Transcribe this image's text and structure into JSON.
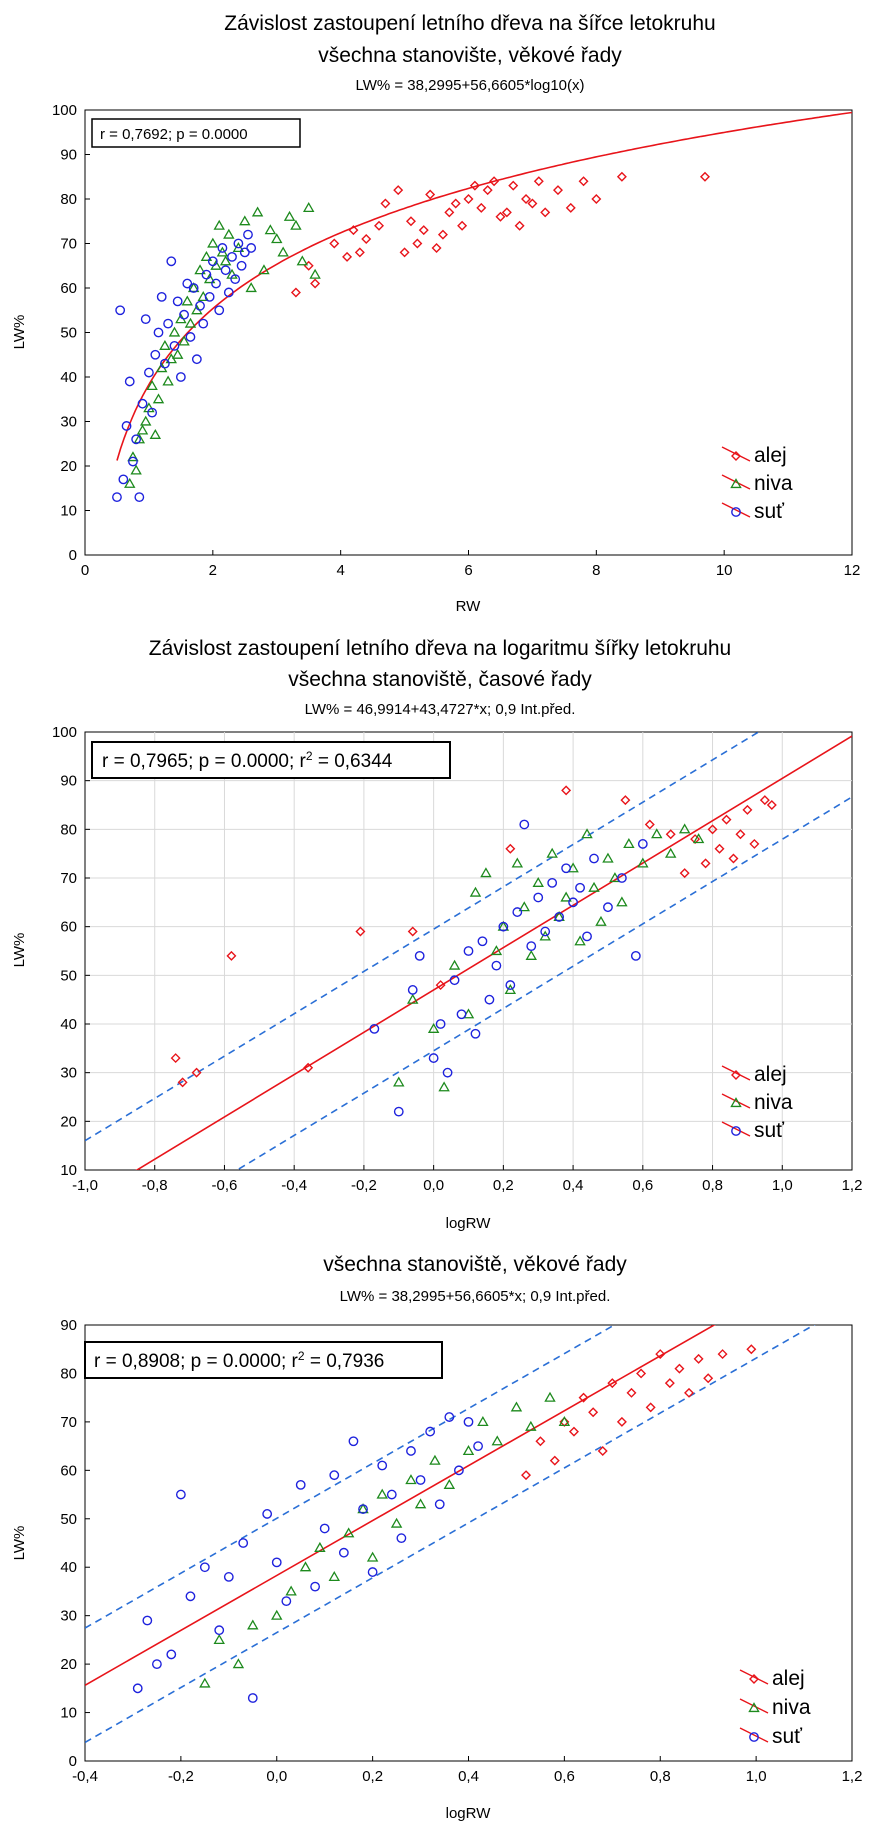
{
  "chart_data": [
    {
      "type": "scatter",
      "title": "Závislost zastoupení letního dřeva na šířce letokruhu",
      "subtitle": "všechna stanovište, věkové řady",
      "equation": "LW% = 38,2995+56,6605*log10(x)",
      "stats": "r = 0,7692; p = 0.0000",
      "xlabel": "RW",
      "ylabel": "LW%",
      "xlim": [
        0,
        12
      ],
      "ylim": [
        0,
        100
      ],
      "xticks": [
        "0",
        "2",
        "4",
        "6",
        "8",
        "10",
        "12"
      ],
      "yticks": [
        "0",
        "10",
        "20",
        "30",
        "40",
        "50",
        "60",
        "70",
        "80",
        "90",
        "100"
      ],
      "grid": false,
      "legend_position": "bottom-right",
      "fit": {
        "form": "log10",
        "intercept": 38.2995,
        "slope": 56.6605
      },
      "series": [
        {
          "name": "alej",
          "color": "#e8141a",
          "marker": "diamond",
          "x": [
            3.3,
            3.5,
            3.6,
            3.9,
            4.1,
            4.2,
            4.3,
            4.4,
            4.6,
            4.7,
            4.9,
            5.0,
            5.1,
            5.2,
            5.3,
            5.4,
            5.5,
            5.6,
            5.7,
            5.8,
            5.9,
            6.0,
            6.1,
            6.2,
            6.3,
            6.4,
            6.5,
            6.6,
            6.7,
            6.8,
            6.9,
            7.0,
            7.1,
            7.2,
            7.4,
            7.6,
            7.8,
            8.0,
            8.4,
            9.7
          ],
          "y": [
            59,
            65,
            61,
            70,
            67,
            73,
            68,
            71,
            74,
            79,
            82,
            68,
            75,
            70,
            73,
            81,
            69,
            72,
            77,
            79,
            74,
            80,
            83,
            78,
            82,
            84,
            76,
            77,
            83,
            74,
            80,
            79,
            84,
            77,
            82,
            78,
            84,
            80,
            85,
            85
          ]
        },
        {
          "name": "niva",
          "color": "#1d8a1d",
          "marker": "triangle",
          "x": [
            0.7,
            0.75,
            0.8,
            0.85,
            0.9,
            0.95,
            1.0,
            1.05,
            1.1,
            1.15,
            1.2,
            1.25,
            1.3,
            1.35,
            1.4,
            1.45,
            1.5,
            1.55,
            1.6,
            1.65,
            1.7,
            1.75,
            1.8,
            1.85,
            1.9,
            1.95,
            2.0,
            2.05,
            2.1,
            2.15,
            2.2,
            2.25,
            2.3,
            2.4,
            2.5,
            2.6,
            2.7,
            2.8,
            2.9,
            3.0,
            3.1,
            3.2,
            3.3,
            3.4,
            3.5,
            3.6
          ],
          "y": [
            16,
            22,
            19,
            26,
            28,
            30,
            33,
            38,
            27,
            35,
            42,
            47,
            39,
            44,
            50,
            45,
            53,
            48,
            57,
            52,
            60,
            55,
            64,
            58,
            67,
            62,
            70,
            65,
            74,
            68,
            66,
            72,
            63,
            69,
            75,
            60,
            77,
            64,
            73,
            71,
            68,
            76,
            74,
            66,
            78,
            63
          ]
        },
        {
          "name": "suť",
          "color": "#1e22dd",
          "marker": "circle",
          "x": [
            0.5,
            0.55,
            0.6,
            0.65,
            0.7,
            0.75,
            0.8,
            0.85,
            0.9,
            0.95,
            1.0,
            1.05,
            1.1,
            1.15,
            1.2,
            1.25,
            1.3,
            1.35,
            1.4,
            1.45,
            1.5,
            1.55,
            1.6,
            1.65,
            1.7,
            1.75,
            1.8,
            1.85,
            1.9,
            1.95,
            2.0,
            2.05,
            2.1,
            2.15,
            2.2,
            2.25,
            2.3,
            2.35,
            2.4,
            2.45,
            2.5,
            2.55,
            2.6
          ],
          "y": [
            13,
            55,
            17,
            29,
            39,
            21,
            26,
            13,
            34,
            53,
            41,
            32,
            45,
            50,
            58,
            43,
            52,
            66,
            47,
            57,
            40,
            54,
            61,
            49,
            60,
            44,
            56,
            52,
            63,
            58,
            66,
            61,
            55,
            69,
            64,
            59,
            67,
            62,
            70,
            65,
            68,
            72,
            69
          ]
        }
      ]
    },
    {
      "type": "scatter",
      "title": "Závislost zastoupení letního dřeva na logaritmu šířky letokruhu",
      "subtitle": "všechna stanoviště, časové řady",
      "equation": "LW% = 46,9914+43,4727*x; 0,9 Int.před.",
      "stats": {
        "prefix": "r = 0,7965; p = 0.0000; r",
        "sup": "2",
        "suffix": " = 0,6344"
      },
      "xlabel": "logRW",
      "ylabel": "LW%",
      "xlim": [
        -1.0,
        1.2
      ],
      "ylim": [
        10,
        100
      ],
      "xticks": [
        "-1,0",
        "-0,8",
        "-0,6",
        "-0,4",
        "-0,2",
        "0,0",
        "0,2",
        "0,4",
        "0,6",
        "0,8",
        "1,0",
        "1,2"
      ],
      "yticks": [
        "10",
        "20",
        "30",
        "40",
        "50",
        "60",
        "70",
        "80",
        "90",
        "100"
      ],
      "grid": true,
      "legend_position": "bottom-right",
      "fit": {
        "form": "linear",
        "intercept": 46.9914,
        "slope": 43.4727,
        "pred_band": 12.5
      },
      "series": [
        {
          "name": "alej",
          "color": "#e8141a",
          "marker": "diamond",
          "x": [
            -0.74,
            -0.72,
            -0.68,
            -0.58,
            -0.36,
            -0.21,
            -0.06,
            0.02,
            0.22,
            0.38,
            0.55,
            0.62,
            0.68,
            0.72,
            0.75,
            0.78,
            0.8,
            0.82,
            0.84,
            0.86,
            0.88,
            0.9,
            0.92,
            0.95,
            0.97
          ],
          "y": [
            33,
            28,
            30,
            54,
            31,
            59,
            59,
            48,
            76,
            88,
            86,
            81,
            79,
            71,
            78,
            73,
            80,
            76,
            82,
            74,
            79,
            84,
            77,
            86,
            85
          ]
        },
        {
          "name": "niva",
          "color": "#1d8a1d",
          "marker": "triangle",
          "x": [
            -0.1,
            -0.06,
            0.0,
            0.03,
            0.06,
            0.1,
            0.12,
            0.15,
            0.18,
            0.2,
            0.22,
            0.24,
            0.26,
            0.28,
            0.3,
            0.32,
            0.34,
            0.36,
            0.38,
            0.4,
            0.42,
            0.44,
            0.46,
            0.48,
            0.5,
            0.52,
            0.54,
            0.56,
            0.6,
            0.64,
            0.68,
            0.72,
            0.76
          ],
          "y": [
            28,
            45,
            39,
            27,
            52,
            42,
            67,
            71,
            55,
            60,
            47,
            73,
            64,
            54,
            69,
            58,
            75,
            62,
            66,
            72,
            57,
            79,
            68,
            61,
            74,
            70,
            65,
            77,
            73,
            79,
            75,
            80,
            78
          ]
        },
        {
          "name": "suť",
          "color": "#1e22dd",
          "marker": "circle",
          "x": [
            -0.17,
            -0.1,
            -0.06,
            -0.04,
            0.0,
            0.02,
            0.04,
            0.06,
            0.08,
            0.1,
            0.12,
            0.14,
            0.16,
            0.18,
            0.2,
            0.22,
            0.24,
            0.26,
            0.28,
            0.3,
            0.32,
            0.34,
            0.36,
            0.38,
            0.4,
            0.42,
            0.44,
            0.46,
            0.5,
            0.54,
            0.58,
            0.6
          ],
          "y": [
            39,
            22,
            47,
            54,
            33,
            40,
            30,
            49,
            42,
            55,
            38,
            57,
            45,
            52,
            60,
            48,
            63,
            81,
            56,
            66,
            59,
            69,
            62,
            72,
            65,
            68,
            58,
            74,
            64,
            70,
            54,
            77
          ]
        }
      ]
    },
    {
      "type": "scatter",
      "title": "",
      "subtitle": "všechna stanoviště, věkové řady",
      "equation": "LW% = 38,2995+56,6605*x; 0,9 Int.před.",
      "stats": {
        "prefix": "r = 0,8908; p = 0.0000; r",
        "sup": "2",
        "suffix": " = 0,7936"
      },
      "xlabel": "logRW",
      "ylabel": "LW%",
      "xlim": [
        -0.4,
        1.2
      ],
      "ylim": [
        0,
        90
      ],
      "xticks": [
        "-0,4",
        "-0,2",
        "0,0",
        "0,2",
        "0,4",
        "0,6",
        "0,8",
        "1,0",
        "1,2"
      ],
      "yticks": [
        "0",
        "10",
        "20",
        "30",
        "40",
        "50",
        "60",
        "70",
        "80",
        "90"
      ],
      "grid": false,
      "legend_position": "bottom-right",
      "fit": {
        "form": "linear",
        "intercept": 38.2995,
        "slope": 56.6605,
        "pred_band": 11.8
      },
      "series": [
        {
          "name": "alej",
          "color": "#e8141a",
          "marker": "diamond",
          "x": [
            0.52,
            0.55,
            0.58,
            0.6,
            0.62,
            0.64,
            0.66,
            0.68,
            0.7,
            0.72,
            0.74,
            0.76,
            0.78,
            0.8,
            0.82,
            0.84,
            0.86,
            0.88,
            0.9,
            0.93,
            0.99
          ],
          "y": [
            59,
            66,
            62,
            70,
            68,
            75,
            72,
            64,
            78,
            70,
            76,
            80,
            73,
            84,
            78,
            81,
            76,
            83,
            79,
            84,
            85
          ]
        },
        {
          "name": "niva",
          "color": "#1d8a1d",
          "marker": "triangle",
          "x": [
            -0.15,
            -0.12,
            -0.08,
            -0.05,
            0.0,
            0.03,
            0.06,
            0.09,
            0.12,
            0.15,
            0.18,
            0.2,
            0.22,
            0.25,
            0.28,
            0.3,
            0.33,
            0.36,
            0.4,
            0.43,
            0.46,
            0.5,
            0.53,
            0.57,
            0.6
          ],
          "y": [
            16,
            25,
            20,
            28,
            30,
            35,
            40,
            44,
            38,
            47,
            52,
            42,
            55,
            49,
            58,
            53,
            62,
            57,
            64,
            70,
            66,
            73,
            69,
            75,
            70
          ]
        },
        {
          "name": "suť",
          "color": "#1e22dd",
          "marker": "circle",
          "x": [
            -0.29,
            -0.27,
            -0.25,
            -0.22,
            -0.2,
            -0.18,
            -0.15,
            -0.12,
            -0.1,
            -0.07,
            -0.05,
            -0.02,
            0.0,
            0.02,
            0.05,
            0.08,
            0.1,
            0.12,
            0.14,
            0.16,
            0.18,
            0.2,
            0.22,
            0.24,
            0.26,
            0.28,
            0.3,
            0.32,
            0.34,
            0.36,
            0.38,
            0.4,
            0.42
          ],
          "y": [
            15,
            29,
            20,
            22,
            55,
            34,
            40,
            27,
            38,
            45,
            13,
            51,
            41,
            33,
            57,
            36,
            48,
            59,
            43,
            66,
            52,
            39,
            61,
            55,
            46,
            64,
            58,
            68,
            53,
            71,
            60,
            70,
            65
          ]
        }
      ]
    }
  ]
}
